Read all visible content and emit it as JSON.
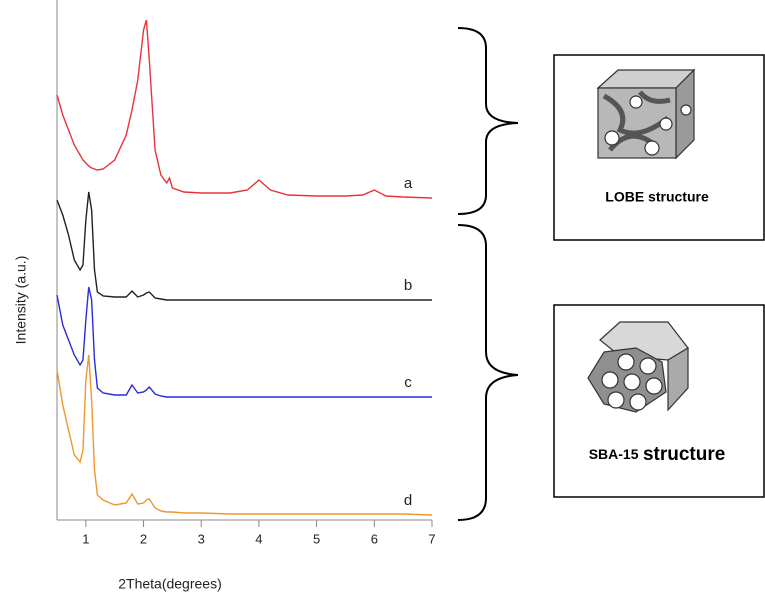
{
  "chart_data": {
    "type": "line",
    "xlabel": "2Theta(degrees)",
    "ylabel": "Intensity (a.u.)",
    "xlim": [
      0.5,
      7
    ],
    "xticks": [
      1,
      2,
      3,
      4,
      5,
      6,
      7
    ],
    "ylim": [
      0,
      104
    ],
    "x": [
      0.5,
      0.6,
      0.7,
      0.8,
      0.9,
      0.95,
      1.0,
      1.05,
      1.1,
      1.15,
      1.2,
      1.3,
      1.5,
      1.7,
      1.8,
      1.9,
      2.0,
      2.05,
      2.1,
      2.2,
      2.3,
      2.4,
      2.45,
      2.5,
      2.7,
      3.0,
      3.5,
      3.8,
      4.0,
      4.2,
      4.5,
      5.0,
      5.5,
      5.8,
      6.0,
      6.2,
      6.5,
      7.0
    ],
    "series": [
      {
        "name": "a",
        "color": "#e8333a",
        "values": [
          85,
          81,
          78,
          75,
          73,
          72,
          71.4,
          70.8,
          70.4,
          70.2,
          70,
          70.2,
          72,
          77,
          82,
          88,
          98,
          100,
          92,
          74,
          69,
          67.4,
          68.4,
          66.4,
          65.6,
          65.4,
          65.4,
          66,
          68,
          66,
          65,
          64.8,
          64.8,
          65,
          66,
          64.8,
          64.6,
          64.4
        ]
      },
      {
        "name": "b",
        "color": "#222222",
        "values": [
          64,
          61,
          57,
          52,
          50,
          51,
          60,
          65.6,
          62,
          50,
          45.6,
          44.8,
          44.6,
          44.6,
          45.8,
          44.6,
          45,
          45.4,
          45.6,
          44.4,
          44.2,
          44,
          44,
          44,
          44,
          44,
          44,
          44,
          44,
          44,
          44,
          44,
          44,
          44,
          44,
          44,
          44,
          44
        ]
      },
      {
        "name": "c",
        "color": "#2b2bd9",
        "values": [
          45,
          39,
          36,
          33,
          31,
          32,
          40,
          46.6,
          44,
          32,
          26.4,
          25.4,
          25,
          25,
          27,
          25.4,
          25.6,
          26,
          26.6,
          25.2,
          24.8,
          24.6,
          24.6,
          24.6,
          24.6,
          24.6,
          24.6,
          24.6,
          24.6,
          24.6,
          24.6,
          24.6,
          24.6,
          24.6,
          24.6,
          24.6,
          24.6,
          24.6
        ]
      },
      {
        "name": "d",
        "color": "#f0962e",
        "values": [
          30,
          23,
          18,
          13,
          11.6,
          14,
          28,
          33,
          24,
          10,
          5,
          4,
          3,
          3.4,
          5.2,
          3.2,
          3.4,
          4,
          4.2,
          2.4,
          1.8,
          1.6,
          1.6,
          1.6,
          1.4,
          1.4,
          1.2,
          1.2,
          1.2,
          1.2,
          1.2,
          1.2,
          1.2,
          1.2,
          1.2,
          1.2,
          1.2,
          1
        ]
      }
    ]
  },
  "structures": [
    {
      "label": "LOBE structure"
    },
    {
      "label": [
        "SBA-15",
        "structure"
      ]
    }
  ]
}
